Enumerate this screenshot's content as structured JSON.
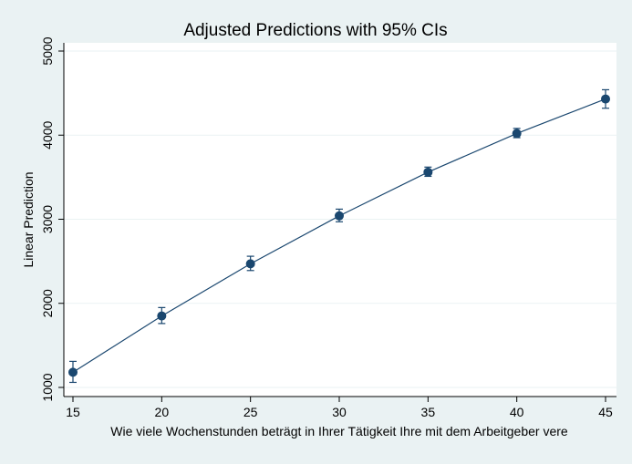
{
  "chart_data": {
    "type": "line",
    "title": "Adjusted Predictions with 95% CIs",
    "xlabel": "Wie viele Wochenstunden beträgt in Ihrer Tätigkeit Ihre mit dem Arbeitgeber vere",
    "ylabel": "Linear Prediction",
    "x_ticks": [
      15,
      20,
      25,
      30,
      35,
      40,
      45
    ],
    "x_tick_labels": [
      "15",
      "20",
      "25",
      "30",
      "35",
      "40",
      "45"
    ],
    "y_ticks": [
      1000,
      2000,
      3000,
      4000,
      5000
    ],
    "y_tick_labels": [
      "1000",
      "2000",
      "3000",
      "4000",
      "5000"
    ],
    "xlim": [
      15,
      45
    ],
    "ylim": [
      1000,
      5000
    ],
    "grid": true,
    "colors": {
      "background": "#eaf2f3",
      "plot": "#ffffff",
      "series": "#1a476f",
      "grid": "#eaf2f3"
    },
    "series": [
      {
        "x": [
          15,
          20,
          25,
          30,
          35,
          40,
          45
        ],
        "y": [
          1180,
          1850,
          2470,
          3040,
          3560,
          4020,
          4430
        ],
        "ci_low": [
          1060,
          1760,
          2390,
          2970,
          3510,
          3970,
          4320
        ],
        "ci_high": [
          1310,
          1950,
          2560,
          3120,
          3620,
          4080,
          4540
        ]
      }
    ]
  }
}
